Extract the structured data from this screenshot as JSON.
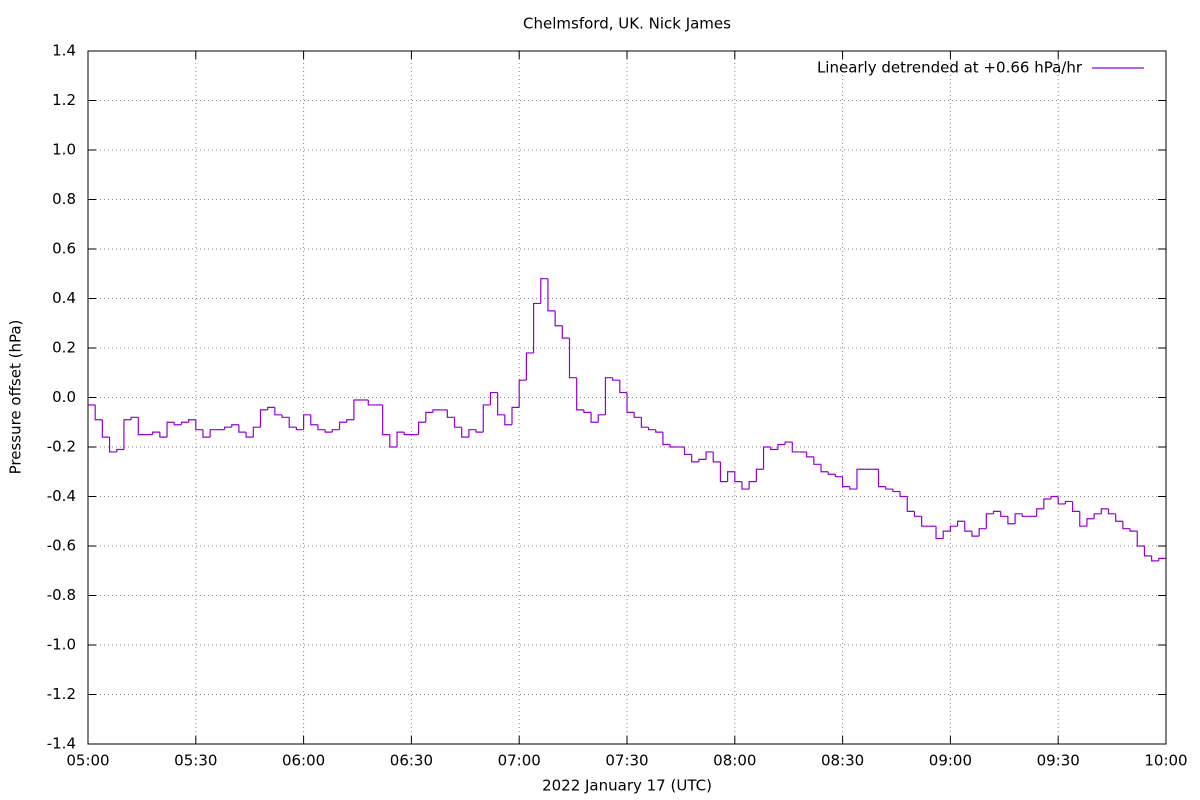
{
  "chart_data": {
    "type": "step",
    "title": "Chelmsford, UK. Nick James",
    "xlabel": "2022 January 17  (UTC)",
    "ylabel": "Pressure offset (hPa)",
    "x": [
      "05:00",
      "05:02",
      "05:04",
      "05:06",
      "05:08",
      "05:10",
      "05:12",
      "05:14",
      "05:16",
      "05:18",
      "05:20",
      "05:22",
      "05:24",
      "05:26",
      "05:28",
      "05:30",
      "05:32",
      "05:34",
      "05:36",
      "05:38",
      "05:40",
      "05:42",
      "05:44",
      "05:46",
      "05:48",
      "05:50",
      "05:52",
      "05:54",
      "05:56",
      "05:58",
      "06:00",
      "06:02",
      "06:04",
      "06:06",
      "06:08",
      "06:10",
      "06:12",
      "06:14",
      "06:16",
      "06:18",
      "06:20",
      "06:22",
      "06:24",
      "06:26",
      "06:28",
      "06:30",
      "06:32",
      "06:34",
      "06:36",
      "06:38",
      "06:40",
      "06:42",
      "06:44",
      "06:46",
      "06:48",
      "06:50",
      "06:52",
      "06:54",
      "06:56",
      "06:58",
      "07:00",
      "07:02",
      "07:04",
      "07:06",
      "07:08",
      "07:10",
      "07:12",
      "07:14",
      "07:16",
      "07:18",
      "07:20",
      "07:22",
      "07:24",
      "07:26",
      "07:28",
      "07:30",
      "07:32",
      "07:34",
      "07:36",
      "07:38",
      "07:40",
      "07:42",
      "07:44",
      "07:46",
      "07:48",
      "07:50",
      "07:52",
      "07:54",
      "07:56",
      "07:58",
      "08:00",
      "08:02",
      "08:04",
      "08:06",
      "08:08",
      "08:10",
      "08:12",
      "08:14",
      "08:16",
      "08:18",
      "08:20",
      "08:22",
      "08:24",
      "08:26",
      "08:28",
      "08:30",
      "08:32",
      "08:34",
      "08:36",
      "08:38",
      "08:40",
      "08:42",
      "08:44",
      "08:46",
      "08:48",
      "08:50",
      "08:52",
      "08:54",
      "08:56",
      "08:58",
      "09:00",
      "09:02",
      "09:04",
      "09:06",
      "09:08",
      "09:10",
      "09:12",
      "09:14",
      "09:16",
      "09:18",
      "09:20",
      "09:22",
      "09:24",
      "09:26",
      "09:28",
      "09:30",
      "09:32",
      "09:34",
      "09:36",
      "09:38",
      "09:40",
      "09:42",
      "09:44",
      "09:46",
      "09:48",
      "09:50",
      "09:52",
      "09:54",
      "09:56",
      "09:58"
    ],
    "series": [
      {
        "name": "Linearly detrended at +0.66 hPa/hr",
        "color": "#9400d3",
        "values": [
          -0.03,
          -0.09,
          -0.16,
          -0.22,
          -0.21,
          -0.09,
          -0.08,
          -0.15,
          -0.15,
          -0.14,
          -0.16,
          -0.1,
          -0.11,
          -0.1,
          -0.09,
          -0.13,
          -0.16,
          -0.13,
          -0.13,
          -0.12,
          -0.11,
          -0.14,
          -0.16,
          -0.12,
          -0.05,
          -0.04,
          -0.07,
          -0.08,
          -0.12,
          -0.13,
          -0.07,
          -0.11,
          -0.13,
          -0.14,
          -0.13,
          -0.1,
          -0.09,
          -0.01,
          -0.01,
          -0.03,
          -0.03,
          -0.15,
          -0.2,
          -0.14,
          -0.15,
          -0.15,
          -0.1,
          -0.06,
          -0.05,
          -0.05,
          -0.08,
          -0.12,
          -0.16,
          -0.13,
          -0.14,
          -0.03,
          0.02,
          -0.07,
          -0.11,
          -0.04,
          0.07,
          0.18,
          0.38,
          0.48,
          0.35,
          0.29,
          0.24,
          0.08,
          -0.05,
          -0.06,
          -0.1,
          -0.07,
          0.08,
          0.07,
          0.02,
          -0.06,
          -0.08,
          -0.12,
          -0.13,
          -0.14,
          -0.19,
          -0.2,
          -0.2,
          -0.23,
          -0.26,
          -0.25,
          -0.22,
          -0.26,
          -0.34,
          -0.3,
          -0.34,
          -0.37,
          -0.34,
          -0.29,
          -0.2,
          -0.21,
          -0.19,
          -0.18,
          -0.22,
          -0.22,
          -0.24,
          -0.27,
          -0.3,
          -0.31,
          -0.32,
          -0.36,
          -0.37,
          -0.29,
          -0.29,
          -0.29,
          -0.36,
          -0.37,
          -0.38,
          -0.4,
          -0.46,
          -0.48,
          -0.52,
          -0.52,
          -0.57,
          -0.54,
          -0.52,
          -0.5,
          -0.54,
          -0.56,
          -0.53,
          -0.47,
          -0.46,
          -0.48,
          -0.51,
          -0.47,
          -0.48,
          -0.48,
          -0.45,
          -0.41,
          -0.4,
          -0.43,
          -0.42,
          -0.46,
          -0.52,
          -0.49,
          -0.47,
          -0.45,
          -0.47,
          -0.5,
          -0.53,
          -0.54,
          -0.6,
          -0.64,
          -0.66,
          -0.65
        ]
      }
    ],
    "xlim": [
      "05:00",
      "10:00"
    ],
    "xticks": [
      "05:00",
      "05:30",
      "06:00",
      "06:30",
      "07:00",
      "07:30",
      "08:00",
      "08:30",
      "09:00",
      "09:30",
      "10:00"
    ],
    "ylim": [
      -1.4,
      1.4
    ],
    "yticks": [
      -1.4,
      -1.2,
      {
        "value": -1.0,
        "label": "-1.0"
      },
      -0.8,
      -0.6,
      -0.4,
      -0.2,
      {
        "value": 0,
        "label": "0.0"
      },
      0.2,
      0.4,
      0.6,
      0.8,
      {
        "value": 1.0,
        "label": "1.0"
      },
      1.2,
      1.4
    ],
    "grid": true,
    "legend": "top-right"
  }
}
